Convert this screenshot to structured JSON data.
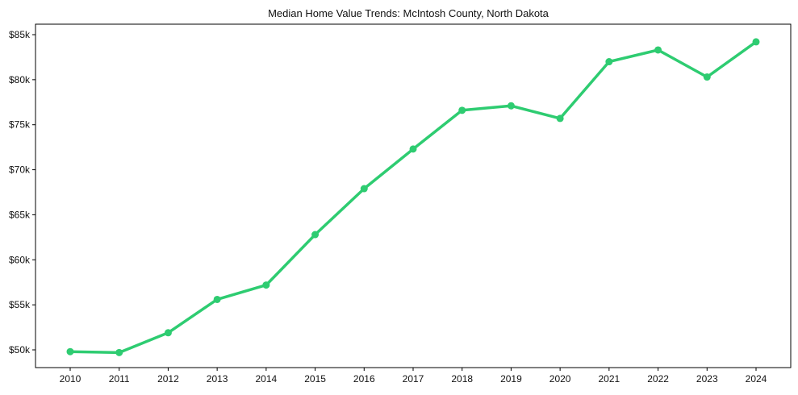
{
  "chart_data": {
    "type": "line",
    "title": "Median Home Value Trends: McIntosh County, North Dakota",
    "xlabel": "",
    "ylabel": "",
    "categories": [
      "2010",
      "2011",
      "2012",
      "2013",
      "2014",
      "2015",
      "2016",
      "2017",
      "2018",
      "2019",
      "2020",
      "2021",
      "2022",
      "2023",
      "2024"
    ],
    "series": [
      {
        "name": "Median Home Value",
        "color": "#2ecc71",
        "values": [
          49800,
          49700,
          51900,
          55600,
          57200,
          62800,
          67900,
          72300,
          76600,
          77100,
          75700,
          82000,
          83300,
          80300,
          84200
        ]
      }
    ],
    "y_ticks": [
      50000,
      55000,
      60000,
      65000,
      70000,
      75000,
      80000,
      85000
    ],
    "y_tick_labels": [
      "$50k",
      "$55k",
      "$60k",
      "$65k",
      "$70k",
      "$75k",
      "$80k",
      "$85k"
    ],
    "ylim": [
      48000,
      86200
    ],
    "grid": false,
    "legend": "none"
  }
}
